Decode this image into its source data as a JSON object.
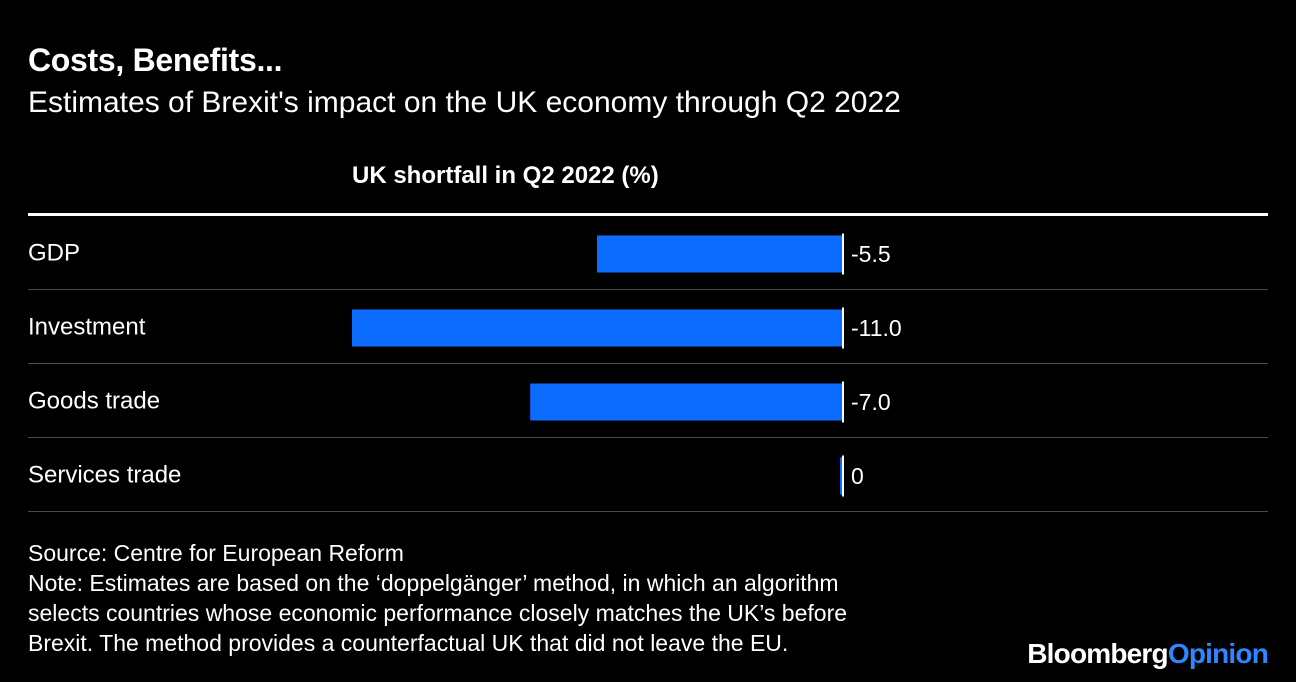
{
  "title": "Costs, Benefits...",
  "subtitle": "Estimates of Brexit's impact on the UK economy through Q2 2022",
  "chart_data": {
    "type": "bar",
    "orientation": "horizontal",
    "column_header": "UK shortfall in Q2 2022 (%)",
    "categories": [
      "GDP",
      "Investment",
      "Goods trade",
      "Services trade"
    ],
    "values": [
      -5.5,
      -11.0,
      -7.0,
      0
    ],
    "value_labels": [
      "-5.5",
      "-11.0",
      "-7.0",
      "0"
    ],
    "xlim": [
      -11.0,
      0
    ],
    "bar_color": "#0b6cff",
    "grid": false,
    "legend": "none"
  },
  "source": "Source: Centre for European Reform",
  "note_lines": [
    "Note: Estimates are based on the ‘doppelgänger’ method, in which an algorithm",
    "selects countries whose economic performance closely matches the UK’s before",
    "Brexit. The method provides a counterfactual UK that did not leave the EU."
  ],
  "brand": {
    "part1": "Bloomberg",
    "part2": "Opinion"
  }
}
